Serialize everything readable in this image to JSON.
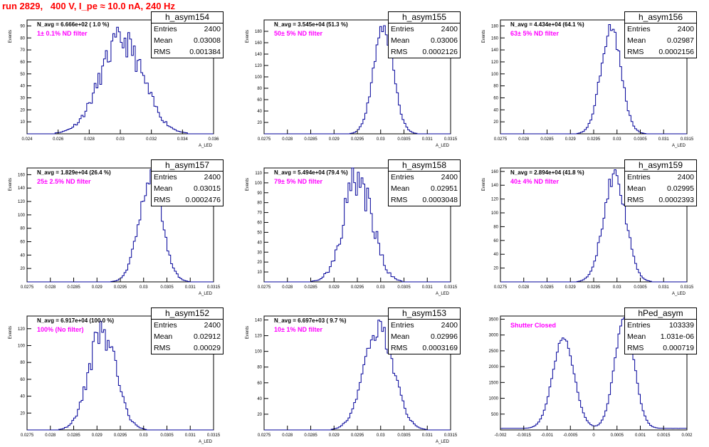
{
  "header": {
    "run_title": "run 2829,   400 V, I_pe ≈ 10.0 nA, 240 Hz"
  },
  "chart_data": [
    {
      "type": "histogram",
      "name": "h_asym154",
      "navg": "N_avg = 6.666e+02 ( 1.0 %)",
      "filter_label": "1± 0.1% ND filter",
      "stats": {
        "entries": "2400",
        "mean": "0.03008",
        "rms": "0.001384"
      },
      "stat_labels": {
        "entries": "Entries",
        "mean": "Mean",
        "rms": "RMS"
      },
      "xlim": [
        0.024,
        0.036
      ],
      "ylim": [
        0,
        95
      ],
      "xticks": [
        0.024,
        0.026,
        0.028,
        0.03,
        0.032,
        0.034,
        0.036
      ],
      "xtick_labels": [
        "0.024",
        "0.026",
        "0.028",
        "0.03",
        "0.032",
        "0.034",
        "0.036"
      ],
      "yticks": [
        10,
        20,
        30,
        40,
        50,
        60,
        70,
        80,
        90
      ],
      "xlabel": "A_LED",
      "ylabel": "Events",
      "mean": 0.03008,
      "sigma": 0.001384,
      "peak": 78,
      "nbins": 100,
      "seed": 11,
      "noise": 0.16
    },
    {
      "type": "histogram",
      "name": "h_asym155",
      "navg": "N_avg = 3.545e+04 (51.3 %)",
      "filter_label": "50± 5% ND filter",
      "stats": {
        "entries": "2400",
        "mean": "0.03006",
        "rms": "0.0002126"
      },
      "stat_labels": {
        "entries": "Entries",
        "mean": "Mean",
        "rms": "RMS"
      },
      "xlim": [
        0.0275,
        0.0315
      ],
      "ylim": [
        0,
        200
      ],
      "xticks": [
        0.0275,
        0.028,
        0.0285,
        0.029,
        0.0295,
        0.03,
        0.0305,
        0.031,
        0.0315
      ],
      "xtick_labels": [
        "0.0275",
        "0.028",
        "0.0285",
        "0.029",
        "0.0295",
        "0.03",
        "0.0305",
        "0.031",
        "0.0315"
      ],
      "yticks": [
        20,
        40,
        60,
        80,
        100,
        120,
        140,
        160,
        180
      ],
      "xlabel": "A_LED",
      "ylabel": "Events",
      "mean": 0.03006,
      "sigma": 0.0002126,
      "peak": 185,
      "nbins": 100,
      "seed": 23,
      "noise": 0.08
    },
    {
      "type": "histogram",
      "name": "h_asym156",
      "navg": "N_avg = 4.434e+04 (64.1 %)",
      "filter_label": "63± 5% ND filter",
      "stats": {
        "entries": "2400",
        "mean": "0.02987",
        "rms": "0.0002156"
      },
      "stat_labels": {
        "entries": "Entries",
        "mean": "Mean",
        "rms": "RMS"
      },
      "xlim": [
        0.0275,
        0.0315
      ],
      "ylim": [
        0,
        190
      ],
      "xticks": [
        0.0275,
        0.028,
        0.0285,
        0.029,
        0.0295,
        0.03,
        0.0305,
        0.031,
        0.0315
      ],
      "xtick_labels": [
        "0.0275",
        "0.028",
        "0.0285",
        "0.029",
        "0.0295",
        "0.03",
        "0.0305",
        "0.031",
        "0.0315"
      ],
      "yticks": [
        20,
        40,
        60,
        80,
        100,
        120,
        140,
        160,
        180
      ],
      "xlabel": "A_LED",
      "ylabel": "Events",
      "mean": 0.02987,
      "sigma": 0.0002156,
      "peak": 180,
      "nbins": 100,
      "seed": 37,
      "noise": 0.08
    },
    {
      "type": "histogram",
      "name": "h_asym157",
      "navg": "N_avg = 1.829e+04 (26.4 %)",
      "filter_label": "25± 2.5% ND filter",
      "stats": {
        "entries": "2400",
        "mean": "0.03015",
        "rms": "0.0002476"
      },
      "stat_labels": {
        "entries": "Entries",
        "mean": "Mean",
        "rms": "RMS"
      },
      "xlim": [
        0.0275,
        0.0315
      ],
      "ylim": [
        0,
        170
      ],
      "xticks": [
        0.0275,
        0.028,
        0.0285,
        0.029,
        0.0295,
        0.03,
        0.0305,
        0.031,
        0.0315
      ],
      "xtick_labels": [
        "0.0275",
        "0.028",
        "0.0285",
        "0.029",
        "0.0295",
        "0.03",
        "0.0305",
        "0.031",
        "0.0315"
      ],
      "yticks": [
        20,
        40,
        60,
        80,
        100,
        120,
        140,
        160
      ],
      "xlabel": "A_LED",
      "ylabel": "Events",
      "mean": 0.03015,
      "sigma": 0.0002476,
      "peak": 155,
      "nbins": 100,
      "seed": 41,
      "noise": 0.1
    },
    {
      "type": "histogram",
      "name": "h_asym158",
      "navg": "N_avg = 5.494e+04 (79.4 %)",
      "filter_label": "79± 5% ND filter",
      "stats": {
        "entries": "2400",
        "mean": "0.02951",
        "rms": "0.0003048"
      },
      "stat_labels": {
        "entries": "Entries",
        "mean": "Mean",
        "rms": "RMS"
      },
      "xlim": [
        0.0275,
        0.0315
      ],
      "ylim": [
        0,
        115
      ],
      "xticks": [
        0.0275,
        0.028,
        0.0285,
        0.029,
        0.0295,
        0.03,
        0.0305,
        0.031,
        0.0315
      ],
      "xtick_labels": [
        "0.0275",
        "0.028",
        "0.0285",
        "0.029",
        "0.0295",
        "0.03",
        "0.0305",
        "0.031",
        "0.0315"
      ],
      "yticks": [
        10,
        20,
        30,
        40,
        50,
        60,
        70,
        80,
        90,
        100,
        110
      ],
      "xlabel": "A_LED",
      "ylabel": "Events",
      "mean": 0.02951,
      "sigma": 0.0003048,
      "peak": 105,
      "nbins": 100,
      "seed": 53,
      "noise": 0.22
    },
    {
      "type": "histogram",
      "name": "h_asym159",
      "navg": "N_avg = 2.894e+04 (41.8 %)",
      "filter_label": "40± 4% ND filter",
      "stats": {
        "entries": "2400",
        "mean": "0.02995",
        "rms": "0.0002393"
      },
      "stat_labels": {
        "entries": "Entries",
        "mean": "Mean",
        "rms": "RMS"
      },
      "xlim": [
        0.0275,
        0.0315
      ],
      "ylim": [
        0,
        165
      ],
      "xticks": [
        0.0275,
        0.028,
        0.0285,
        0.029,
        0.0295,
        0.03,
        0.0305,
        0.031,
        0.0315
      ],
      "xtick_labels": [
        "0.0275",
        "0.028",
        "0.0285",
        "0.029",
        "0.0295",
        "0.03",
        "0.0305",
        "0.031",
        "0.0315"
      ],
      "yticks": [
        20,
        40,
        60,
        80,
        100,
        120,
        140,
        160
      ],
      "xlabel": "A_LED",
      "ylabel": "Events",
      "mean": 0.02995,
      "sigma": 0.0002393,
      "peak": 155,
      "nbins": 100,
      "seed": 67,
      "noise": 0.08
    },
    {
      "type": "histogram",
      "name": "h_asym152",
      "navg": "N_avg = 6.917e+04 (100.0 %)",
      "filter_label": "100% (No filter)",
      "stats": {
        "entries": "2400",
        "mean": "0.02912",
        "rms": "0.00029"
      },
      "stat_labels": {
        "entries": "Entries",
        "mean": "Mean",
        "rms": "RMS"
      },
      "xlim": [
        0.0275,
        0.0315
      ],
      "ylim": [
        0,
        135
      ],
      "xticks": [
        0.0275,
        0.028,
        0.0285,
        0.029,
        0.0295,
        0.03,
        0.0305,
        0.031,
        0.0315
      ],
      "xtick_labels": [
        "0.0275",
        "0.028",
        "0.0285",
        "0.029",
        "0.0295",
        "0.03",
        "0.0305",
        "0.031",
        "0.0315"
      ],
      "yticks": [
        20,
        40,
        60,
        80,
        100,
        120
      ],
      "xlabel": "A_LED",
      "ylabel": "Events",
      "mean": 0.02912,
      "sigma": 0.00029,
      "peak": 115,
      "nbins": 100,
      "seed": 79,
      "noise": 0.18
    },
    {
      "type": "histogram",
      "name": "h_asym153",
      "navg": "N_avg = 6.697e+03 ( 9.7 %)",
      "filter_label": "10± 1% ND filter",
      "stats": {
        "entries": "2400",
        "mean": "0.02996",
        "rms": "0.0003169"
      },
      "stat_labels": {
        "entries": "Entries",
        "mean": "Mean",
        "rms": "RMS"
      },
      "xlim": [
        0.0275,
        0.0315
      ],
      "ylim": [
        0,
        145
      ],
      "xticks": [
        0.0275,
        0.028,
        0.0285,
        0.029,
        0.0295,
        0.03,
        0.0305,
        0.031,
        0.0315
      ],
      "xtick_labels": [
        "0.0275",
        "0.028",
        "0.0285",
        "0.029",
        "0.0295",
        "0.03",
        "0.0305",
        "0.031",
        "0.0315"
      ],
      "yticks": [
        20,
        40,
        60,
        80,
        100,
        120,
        140
      ],
      "xlabel": "A_LED",
      "ylabel": "Events",
      "mean": 0.02996,
      "sigma": 0.0003169,
      "peak": 130,
      "nbins": 100,
      "seed": 83,
      "noise": 0.1
    },
    {
      "type": "histogram",
      "name": "hPed_asym",
      "navg": "",
      "filter_label": "Shutter Closed",
      "stats": {
        "entries": "103339",
        "mean": "1.031e-06",
        "rms": "0.000719"
      },
      "stat_labels": {
        "entries": "Entries",
        "mean": "Mean",
        "rms": "RMS"
      },
      "xlim": [
        -0.002,
        0.002
      ],
      "ylim": [
        0,
        3600
      ],
      "xticks": [
        -0.002,
        -0.0015,
        -0.001,
        -0.0005,
        0,
        0.0005,
        0.001,
        0.0015,
        0.002
      ],
      "xtick_labels": [
        "-0.002",
        "-0.0015",
        "-0.001",
        "-0.0005",
        "0",
        "0.0005",
        "0.001",
        "0.0015",
        "0.002"
      ],
      "yticks": [
        500,
        1000,
        1500,
        2000,
        2500,
        3000,
        3500
      ],
      "xlabel": "",
      "ylabel": "",
      "bimodal": [
        [
          -0.00065,
          0.00023,
          2850
        ],
        [
          0.00066,
          0.00021,
          3450
        ]
      ],
      "nbins": 100,
      "seed": 97,
      "noise": 0.02
    }
  ]
}
